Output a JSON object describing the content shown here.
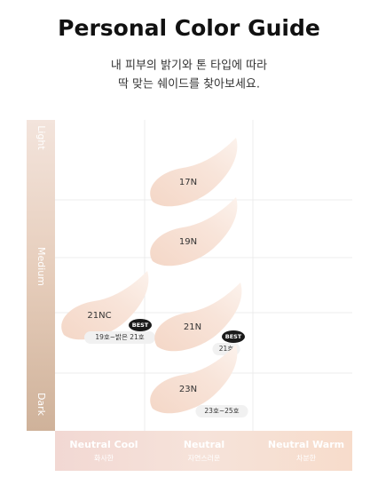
{
  "header": {
    "title": "Personal Color Guide",
    "subtitle": [
      "내 피부의 밝기와 톤 타입에 따라",
      "딱 맞는 쉐이드를 찾아보세요."
    ]
  },
  "brightness_axis": [
    "Light",
    "Medium",
    "Dark"
  ],
  "tone_axis": [
    {
      "label": "Neutral Cool",
      "sub": "화사한"
    },
    {
      "label": "Neutral",
      "sub": "자연스러운"
    },
    {
      "label": "Neutral Warm",
      "sub": "차분한"
    }
  ],
  "shades": [
    {
      "name": "17N"
    },
    {
      "name": "19N"
    },
    {
      "name": "21NC",
      "badge": "BEST",
      "range": "19호~밝은 21호"
    },
    {
      "name": "21N",
      "badge": "BEST",
      "range": "21호"
    },
    {
      "name": "23N",
      "range": "23호~25호"
    }
  ]
}
